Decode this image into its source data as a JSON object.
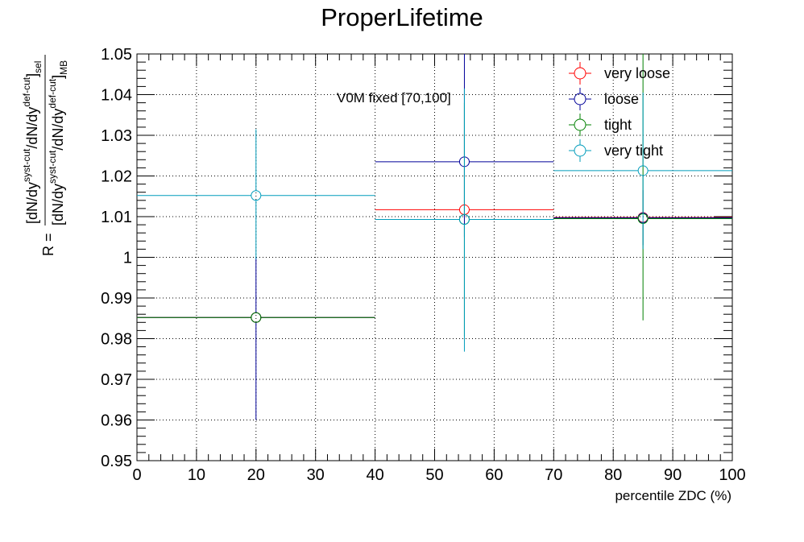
{
  "chart_data": {
    "type": "scatter",
    "title": "ProperLifetime",
    "xlabel": "percentile ZDC (%)",
    "ylabel": {
      "prefix": "R =",
      "numerator": "[dN/dy",
      "num_sup1": "syst-cut",
      "num_mid": "/dN/dy",
      "num_sup2": "def-cut",
      "num_close": "]",
      "num_sub": "sel",
      "denominator": "[dN/dy",
      "den_sup1": "syst-cut",
      "den_mid": "/dN/dy",
      "den_sup2": "def-cut",
      "den_close": "]",
      "den_sub": "MB"
    },
    "xlim": [
      0,
      100
    ],
    "ylim": [
      0.95,
      1.05
    ],
    "grid": true,
    "x_ticks": [
      0,
      10,
      20,
      30,
      40,
      50,
      60,
      70,
      80,
      90,
      100
    ],
    "x_tick_labels": [
      "0",
      "10",
      "20",
      "30",
      "40",
      "50",
      "60",
      "70",
      "80",
      "90",
      "100"
    ],
    "y_ticks": [
      0.95,
      0.96,
      0.97,
      0.98,
      0.99,
      1.0,
      1.01,
      1.02,
      1.03,
      1.04,
      1.05
    ],
    "y_tick_labels": [
      "0.95",
      "0.96",
      "0.97",
      "0.98",
      "0.99",
      "1",
      "1.01",
      "1.02",
      "1.03",
      "1.04",
      "1.05"
    ],
    "annotation": "V0M fixed [70,100]",
    "legend_position": "top-right",
    "series": [
      {
        "name": "very loose",
        "color": "#ff0000",
        "points": [
          {
            "x": 20,
            "xlo": 0,
            "xhi": 40,
            "y": 0.9852,
            "ylo": 0.9852,
            "yhi": 0.9852
          },
          {
            "x": 55,
            "xlo": 40,
            "xhi": 70,
            "y": 1.0117,
            "ylo": 1.0117,
            "yhi": 1.0117
          },
          {
            "x": 85,
            "xlo": 70,
            "xhi": 100,
            "y": 1.0098,
            "ylo": 1.0098,
            "yhi": 1.0098
          }
        ]
      },
      {
        "name": "loose",
        "color": "#000099",
        "points": [
          {
            "x": 20,
            "xlo": 0,
            "xhi": 40,
            "y": 0.9852,
            "ylo": 0.96,
            "yhi": 1.0
          },
          {
            "x": 55,
            "xlo": 40,
            "xhi": 70,
            "y": 1.0235,
            "ylo": 1.005,
            "yhi": 1.05
          },
          {
            "x": 85,
            "xlo": 70,
            "xhi": 100,
            "y": 1.0097,
            "ylo": 1.003,
            "yhi": 1.0165
          }
        ]
      },
      {
        "name": "tight",
        "color": "#008000",
        "points": [
          {
            "x": 20,
            "xlo": 0,
            "xhi": 40,
            "y": 0.9852,
            "ylo": 0.9852,
            "yhi": 0.9852
          },
          {
            "x": 55,
            "xlo": 40,
            "xhi": 70,
            "y": 1.0093,
            "ylo": 0.9805,
            "yhi": 1.038
          },
          {
            "x": 85,
            "xlo": 70,
            "xhi": 100,
            "y": 1.0095,
            "ylo": 0.9845,
            "yhi": 1.05
          }
        ]
      },
      {
        "name": "very tight",
        "color": "#009cbb",
        "points": [
          {
            "x": 20,
            "xlo": 0,
            "xhi": 40,
            "y": 1.0152,
            "ylo": 0.9995,
            "yhi": 1.0315
          },
          {
            "x": 55,
            "xlo": 40,
            "xhi": 70,
            "y": 1.0093,
            "ylo": 0.9768,
            "yhi": 1.0415
          },
          {
            "x": 85,
            "xlo": 70,
            "xhi": 100,
            "y": 1.0213,
            "ylo": 1.002,
            "yhi": 1.0405
          }
        ]
      }
    ]
  }
}
